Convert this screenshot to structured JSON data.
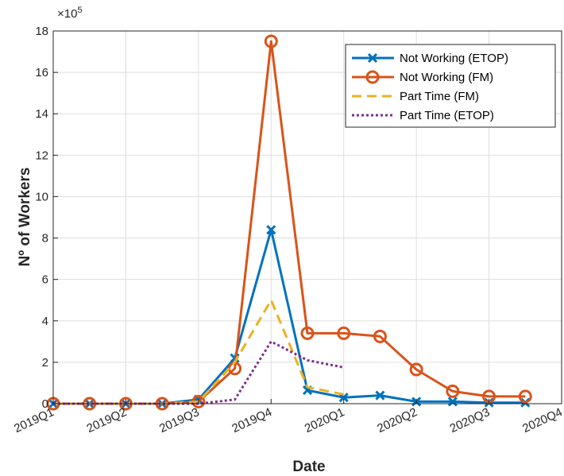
{
  "chart_data": {
    "type": "line",
    "xlabel": "Date",
    "ylabel": "Nº of Workers",
    "y_multiplier_label": "×10",
    "y_multiplier_exponent": "5",
    "x_tick_labels": [
      "2019Q1",
      "2019Q2",
      "2019Q3",
      "2019Q4",
      "2020Q1",
      "2020Q2",
      "2020Q3",
      "2020Q4"
    ],
    "y_tick_labels": [
      "0",
      "2",
      "4",
      "6",
      "8",
      "10",
      "12",
      "14",
      "16",
      "18"
    ],
    "xlim": [
      0,
      7
    ],
    "ylim": [
      0,
      18
    ],
    "grid": true,
    "legend_position": "top-right",
    "series": [
      {
        "name": "Not Working (ETOP)",
        "color": "#0072BD",
        "style": "solid",
        "marker": "x",
        "x": [
          0,
          0.5,
          1,
          1.5,
          2,
          2.5,
          3,
          3.5,
          4,
          4.5,
          5,
          5.5,
          6,
          6.5
        ],
        "y": [
          0,
          0,
          0,
          0,
          0.2,
          2.2,
          8.4,
          0.65,
          0.3,
          0.4,
          0.1,
          0.1,
          0.05,
          0.05
        ]
      },
      {
        "name": "Not Working (FM)",
        "color": "#D95319",
        "style": "solid",
        "marker": "o",
        "x": [
          0,
          0.5,
          1,
          1.5,
          2,
          2.5,
          3,
          3.5,
          4,
          4.5,
          5,
          5.5,
          6,
          6.5
        ],
        "y": [
          0,
          0,
          0,
          0,
          0.1,
          1.7,
          17.5,
          3.4,
          3.4,
          3.25,
          1.65,
          0.6,
          0.35,
          0.35
        ]
      },
      {
        "name": "Part Time (FM)",
        "color": "#EDB120",
        "style": "dashed",
        "marker": "none",
        "x": [
          0,
          0.5,
          1,
          1.5,
          2,
          2.5,
          3,
          3.5,
          4
        ],
        "y": [
          0,
          0,
          0,
          0,
          0.1,
          2.0,
          5.0,
          0.8,
          0.45
        ]
      },
      {
        "name": "Part Time (ETOP)",
        "color": "#7E2F8E",
        "style": "dotted",
        "marker": "none",
        "x": [
          0,
          0.5,
          1,
          1.5,
          2,
          2.5,
          3,
          3.5,
          4
        ],
        "y": [
          0,
          0,
          0,
          0,
          0,
          0.2,
          3.0,
          2.1,
          1.75
        ]
      }
    ]
  }
}
